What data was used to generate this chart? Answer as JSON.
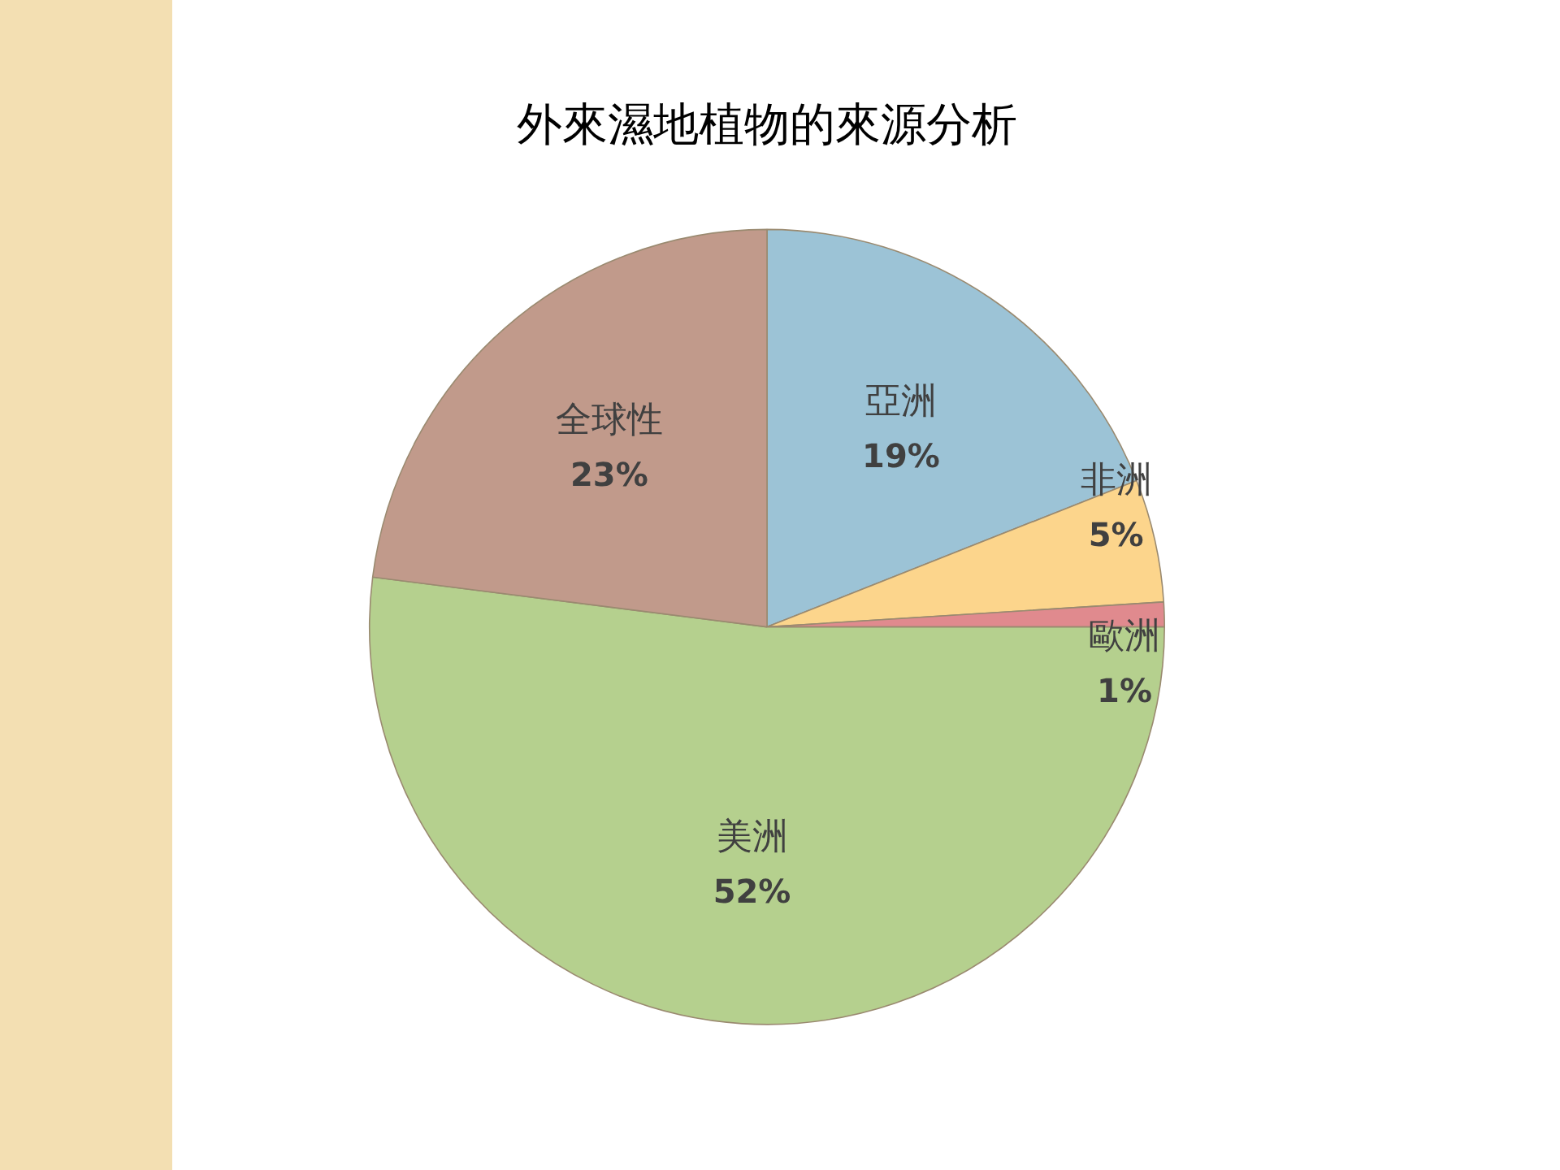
{
  "chart_data": {
    "type": "pie",
    "title": "外來濕地植物的來源分析",
    "categories": [
      "亞洲",
      "非洲",
      "歐洲",
      "美洲",
      "全球性"
    ],
    "values": [
      19,
      5,
      1,
      52,
      23
    ],
    "value_labels": [
      "19%",
      "5%",
      "1%",
      "52%",
      "23%"
    ],
    "colors": [
      "#9cc3d6",
      "#fcd58c",
      "#e08a8e",
      "#b5d08e",
      "#c19a8b"
    ],
    "legend": false
  }
}
